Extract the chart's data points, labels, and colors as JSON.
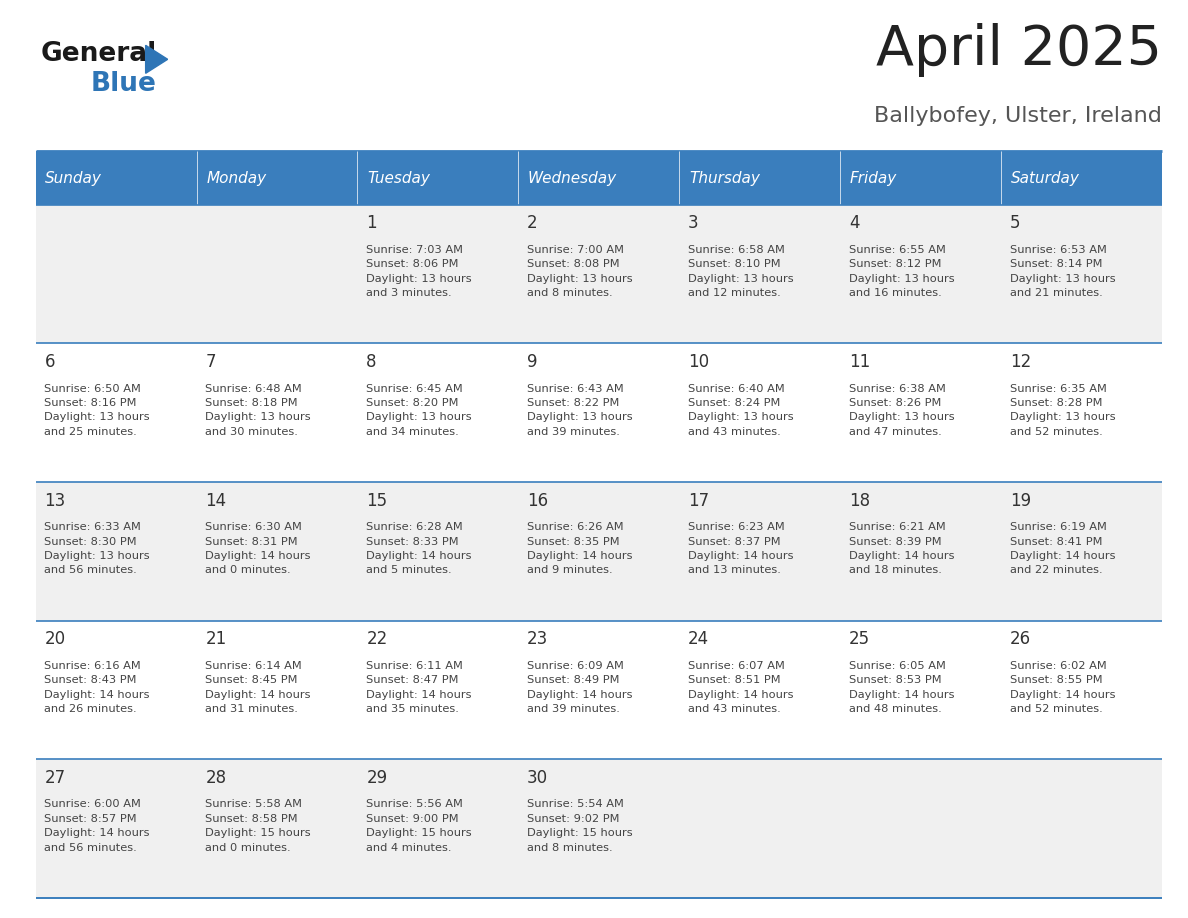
{
  "title": "April 2025",
  "subtitle": "Ballybofey, Ulster, Ireland",
  "days_of_week": [
    "Sunday",
    "Monday",
    "Tuesday",
    "Wednesday",
    "Thursday",
    "Friday",
    "Saturday"
  ],
  "header_bg": "#3A7EBD",
  "header_text": "#FFFFFF",
  "row_bg_odd": "#F0F0F0",
  "row_bg_even": "#FFFFFF",
  "border_color": "#3A7EBD",
  "day_number_color": "#333333",
  "cell_text_color": "#444444",
  "title_color": "#222222",
  "subtitle_color": "#555555",
  "logo_general_color": "#1a1a1a",
  "logo_blue_color": "#2E75B6",
  "calendar_data": [
    [
      {
        "day": "",
        "info": ""
      },
      {
        "day": "",
        "info": ""
      },
      {
        "day": "1",
        "info": "Sunrise: 7:03 AM\nSunset: 8:06 PM\nDaylight: 13 hours\nand 3 minutes."
      },
      {
        "day": "2",
        "info": "Sunrise: 7:00 AM\nSunset: 8:08 PM\nDaylight: 13 hours\nand 8 minutes."
      },
      {
        "day": "3",
        "info": "Sunrise: 6:58 AM\nSunset: 8:10 PM\nDaylight: 13 hours\nand 12 minutes."
      },
      {
        "day": "4",
        "info": "Sunrise: 6:55 AM\nSunset: 8:12 PM\nDaylight: 13 hours\nand 16 minutes."
      },
      {
        "day": "5",
        "info": "Sunrise: 6:53 AM\nSunset: 8:14 PM\nDaylight: 13 hours\nand 21 minutes."
      }
    ],
    [
      {
        "day": "6",
        "info": "Sunrise: 6:50 AM\nSunset: 8:16 PM\nDaylight: 13 hours\nand 25 minutes."
      },
      {
        "day": "7",
        "info": "Sunrise: 6:48 AM\nSunset: 8:18 PM\nDaylight: 13 hours\nand 30 minutes."
      },
      {
        "day": "8",
        "info": "Sunrise: 6:45 AM\nSunset: 8:20 PM\nDaylight: 13 hours\nand 34 minutes."
      },
      {
        "day": "9",
        "info": "Sunrise: 6:43 AM\nSunset: 8:22 PM\nDaylight: 13 hours\nand 39 minutes."
      },
      {
        "day": "10",
        "info": "Sunrise: 6:40 AM\nSunset: 8:24 PM\nDaylight: 13 hours\nand 43 minutes."
      },
      {
        "day": "11",
        "info": "Sunrise: 6:38 AM\nSunset: 8:26 PM\nDaylight: 13 hours\nand 47 minutes."
      },
      {
        "day": "12",
        "info": "Sunrise: 6:35 AM\nSunset: 8:28 PM\nDaylight: 13 hours\nand 52 minutes."
      }
    ],
    [
      {
        "day": "13",
        "info": "Sunrise: 6:33 AM\nSunset: 8:30 PM\nDaylight: 13 hours\nand 56 minutes."
      },
      {
        "day": "14",
        "info": "Sunrise: 6:30 AM\nSunset: 8:31 PM\nDaylight: 14 hours\nand 0 minutes."
      },
      {
        "day": "15",
        "info": "Sunrise: 6:28 AM\nSunset: 8:33 PM\nDaylight: 14 hours\nand 5 minutes."
      },
      {
        "day": "16",
        "info": "Sunrise: 6:26 AM\nSunset: 8:35 PM\nDaylight: 14 hours\nand 9 minutes."
      },
      {
        "day": "17",
        "info": "Sunrise: 6:23 AM\nSunset: 8:37 PM\nDaylight: 14 hours\nand 13 minutes."
      },
      {
        "day": "18",
        "info": "Sunrise: 6:21 AM\nSunset: 8:39 PM\nDaylight: 14 hours\nand 18 minutes."
      },
      {
        "day": "19",
        "info": "Sunrise: 6:19 AM\nSunset: 8:41 PM\nDaylight: 14 hours\nand 22 minutes."
      }
    ],
    [
      {
        "day": "20",
        "info": "Sunrise: 6:16 AM\nSunset: 8:43 PM\nDaylight: 14 hours\nand 26 minutes."
      },
      {
        "day": "21",
        "info": "Sunrise: 6:14 AM\nSunset: 8:45 PM\nDaylight: 14 hours\nand 31 minutes."
      },
      {
        "day": "22",
        "info": "Sunrise: 6:11 AM\nSunset: 8:47 PM\nDaylight: 14 hours\nand 35 minutes."
      },
      {
        "day": "23",
        "info": "Sunrise: 6:09 AM\nSunset: 8:49 PM\nDaylight: 14 hours\nand 39 minutes."
      },
      {
        "day": "24",
        "info": "Sunrise: 6:07 AM\nSunset: 8:51 PM\nDaylight: 14 hours\nand 43 minutes."
      },
      {
        "day": "25",
        "info": "Sunrise: 6:05 AM\nSunset: 8:53 PM\nDaylight: 14 hours\nand 48 minutes."
      },
      {
        "day": "26",
        "info": "Sunrise: 6:02 AM\nSunset: 8:55 PM\nDaylight: 14 hours\nand 52 minutes."
      }
    ],
    [
      {
        "day": "27",
        "info": "Sunrise: 6:00 AM\nSunset: 8:57 PM\nDaylight: 14 hours\nand 56 minutes."
      },
      {
        "day": "28",
        "info": "Sunrise: 5:58 AM\nSunset: 8:58 PM\nDaylight: 15 hours\nand 0 minutes."
      },
      {
        "day": "29",
        "info": "Sunrise: 5:56 AM\nSunset: 9:00 PM\nDaylight: 15 hours\nand 4 minutes."
      },
      {
        "day": "30",
        "info": "Sunrise: 5:54 AM\nSunset: 9:02 PM\nDaylight: 15 hours\nand 8 minutes."
      },
      {
        "day": "",
        "info": ""
      },
      {
        "day": "",
        "info": ""
      },
      {
        "day": "",
        "info": ""
      }
    ]
  ],
  "fig_width": 11.88,
  "fig_height": 9.18,
  "dpi": 100
}
